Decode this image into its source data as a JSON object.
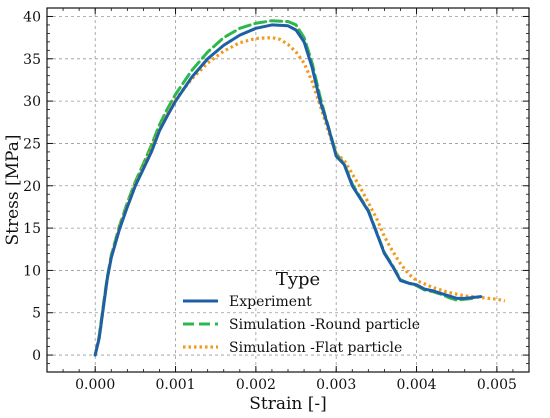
{
  "chart_data": {
    "type": "line",
    "title": "",
    "xlabel": "Strain [-]",
    "ylabel": "Stress [MPa]",
    "xlim": [
      -0.0006,
      0.0054
    ],
    "ylim": [
      -2,
      41
    ],
    "xticks": [
      0.0,
      0.001,
      0.002,
      0.003,
      0.004,
      0.005
    ],
    "xtick_labels": [
      "0.000",
      "0.001",
      "0.002",
      "0.003",
      "0.004",
      "0.005"
    ],
    "yticks": [
      0,
      5,
      10,
      15,
      20,
      25,
      30,
      35,
      40
    ],
    "ytick_labels": [
      "0",
      "5",
      "10",
      "15",
      "20",
      "25",
      "30",
      "35",
      "40"
    ],
    "grid": true,
    "legend": {
      "title": "Type",
      "position": "lower-center"
    },
    "series": [
      {
        "name": "Experiment",
        "color": "#1f5fa6",
        "style": "solid",
        "x": [
          0.0,
          5e-05,
          0.0001,
          0.00015,
          0.0002,
          0.0003,
          0.0004,
          0.0005,
          0.0006,
          0.0007,
          0.0008,
          0.0009,
          0.001,
          0.0012,
          0.0014,
          0.0016,
          0.0018,
          0.002,
          0.0022,
          0.0024,
          0.0025,
          0.0026,
          0.0027,
          0.0028,
          0.0029,
          0.003,
          0.0031,
          0.0032,
          0.0033,
          0.0034,
          0.0035,
          0.0036,
          0.0037,
          0.0038,
          0.0039,
          0.004,
          0.0041,
          0.0042,
          0.0043,
          0.0044,
          0.0045,
          0.0046,
          0.0047,
          0.0048
        ],
        "y": [
          0.0,
          2.0,
          5.5,
          9.0,
          11.5,
          14.8,
          17.5,
          20.0,
          22.0,
          24.0,
          26.5,
          28.3,
          30.0,
          32.8,
          35.0,
          36.6,
          37.8,
          38.6,
          39.0,
          38.9,
          38.4,
          37.0,
          34.0,
          30.0,
          27.0,
          23.5,
          22.5,
          20.0,
          18.5,
          17.0,
          14.5,
          12.0,
          10.5,
          8.8,
          8.5,
          8.3,
          7.8,
          7.6,
          7.3,
          7.0,
          6.7,
          6.7,
          6.8,
          6.9
        ]
      },
      {
        "name": "Simulation -Round particle",
        "color": "#2db84d",
        "style": "dashed",
        "x": [
          0.0,
          5e-05,
          0.0001,
          0.00015,
          0.0002,
          0.0003,
          0.0004,
          0.0005,
          0.0006,
          0.0007,
          0.0008,
          0.0009,
          0.001,
          0.0012,
          0.0014,
          0.0016,
          0.0018,
          0.002,
          0.0022,
          0.0024,
          0.0025,
          0.0026,
          0.0027,
          0.0028,
          0.0029,
          0.003,
          0.0031,
          0.0032,
          0.0033,
          0.0034,
          0.0035,
          0.0036,
          0.0037,
          0.0038,
          0.0039,
          0.004,
          0.0041,
          0.0042,
          0.0043,
          0.0044,
          0.0045,
          0.0046,
          0.0047
        ],
        "y": [
          0.0,
          2.3,
          5.8,
          9.2,
          11.8,
          15.2,
          18.0,
          20.5,
          22.6,
          24.8,
          27.2,
          29.1,
          30.8,
          33.6,
          35.8,
          37.5,
          38.6,
          39.2,
          39.5,
          39.4,
          39.0,
          37.5,
          34.5,
          30.5,
          27.0,
          23.8,
          22.6,
          20.2,
          18.6,
          17.1,
          14.6,
          12.1,
          10.6,
          8.9,
          8.5,
          8.2,
          7.7,
          7.5,
          7.2,
          6.8,
          6.5,
          6.6,
          6.7
        ]
      },
      {
        "name": "Simulation -Flat particle",
        "color": "#f39a1c",
        "style": "dotted",
        "x": [
          0.0,
          5e-05,
          0.0001,
          0.00015,
          0.0002,
          0.0003,
          0.0004,
          0.0005,
          0.0006,
          0.0007,
          0.0008,
          0.0009,
          0.001,
          0.0012,
          0.0014,
          0.0016,
          0.0018,
          0.002,
          0.0022,
          0.0023,
          0.0024,
          0.0025,
          0.0026,
          0.0027,
          0.0028,
          0.0029,
          0.003,
          0.0031,
          0.0032,
          0.0033,
          0.0034,
          0.0035,
          0.0036,
          0.0037,
          0.0038,
          0.0039,
          0.004,
          0.0042,
          0.0044,
          0.0046,
          0.0048,
          0.005,
          0.0051
        ],
        "y": [
          0.0,
          2.1,
          5.6,
          9.0,
          11.6,
          15.0,
          17.7,
          20.2,
          22.2,
          24.4,
          26.6,
          28.5,
          30.2,
          32.6,
          34.5,
          35.9,
          36.9,
          37.4,
          37.5,
          37.3,
          36.7,
          35.8,
          34.5,
          32.3,
          29.5,
          26.5,
          23.8,
          23.0,
          21.4,
          19.8,
          18.0,
          16.2,
          14.0,
          12.3,
          10.8,
          9.6,
          8.8,
          8.0,
          7.4,
          7.0,
          6.8,
          6.6,
          6.4
        ]
      }
    ]
  }
}
